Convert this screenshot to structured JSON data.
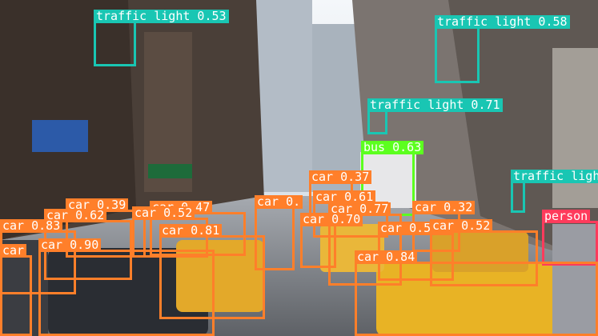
{
  "image": {
    "description_colors": {
      "sky": "#e8eef2",
      "road": "#8a8c90",
      "building_dark": "#3a3430",
      "building_light": "#b9c2ca"
    }
  },
  "classes": {
    "car": {
      "color": "#ff7f2a"
    },
    "traffic light": {
      "color": "#19c6b3"
    },
    "bus": {
      "color": "#5cff1f"
    },
    "person": {
      "color": "#ff3b5c"
    }
  },
  "detections": [
    {
      "label": "traffic light 0.53"
    },
    {
      "label": "traffic light 0.58"
    },
    {
      "label": "traffic light 0.71"
    },
    {
      "label": "traffic ligh"
    },
    {
      "label": "bus 0.63"
    },
    {
      "label": "person"
    },
    {
      "label": "car 0.37"
    },
    {
      "label": "car 0.61"
    },
    {
      "label": "car 0.39"
    },
    {
      "label": "car 0.47"
    },
    {
      "label": "car 0.62"
    },
    {
      "label": "car 0.52"
    },
    {
      "label": "car 0.77"
    },
    {
      "label": "car 0.32"
    },
    {
      "label": "car 0.70"
    },
    {
      "label": "car 0.83"
    },
    {
      "label": "car 0.81"
    },
    {
      "label": "car 0.57"
    },
    {
      "label": "car 0.52"
    },
    {
      "label": "car 0.90"
    },
    {
      "label": "car 0.84"
    },
    {
      "label": "car"
    },
    {
      "label": "car 0."
    }
  ]
}
